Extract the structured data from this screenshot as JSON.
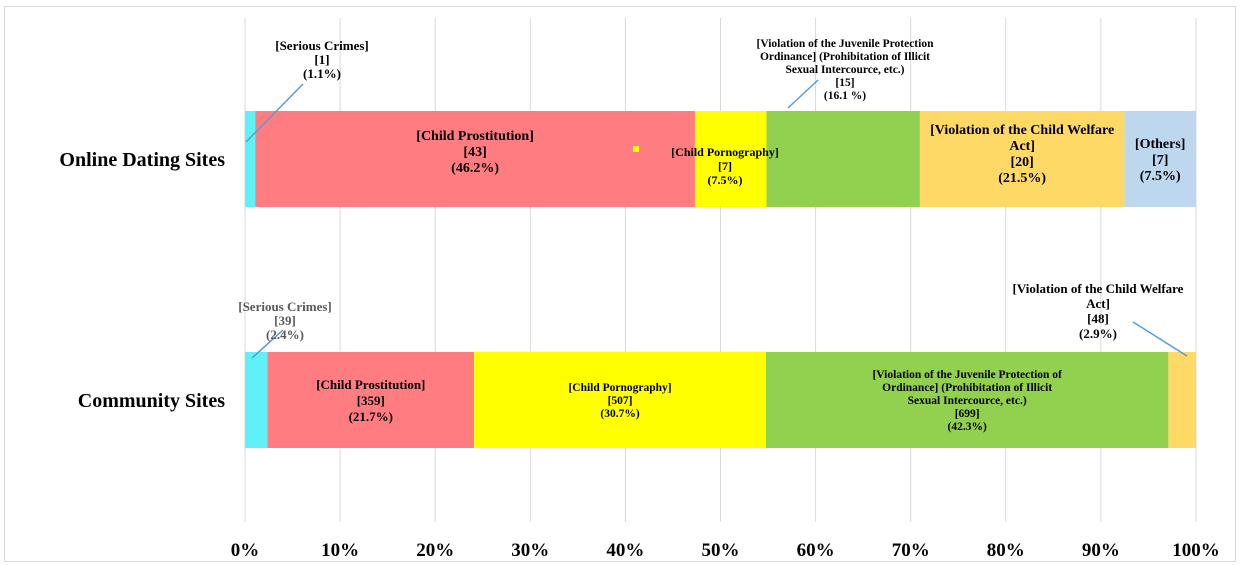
{
  "chart_data": {
    "type": "bar",
    "orientation": "horizontal",
    "stacked": "percent",
    "categories": [
      "Online Dating Sites",
      "Community Sites"
    ],
    "xlim": [
      0,
      100
    ],
    "x_ticks": [
      "0%",
      "10%",
      "20%",
      "30%",
      "40%",
      "50%",
      "60%",
      "70%",
      "80%",
      "90%",
      "100%"
    ],
    "grid": "vertical",
    "legend": "none",
    "series": [
      {
        "key": "serious",
        "color": "#5FF1F7",
        "values": [
          1,
          39
        ],
        "percents": [
          1.1,
          2.4
        ]
      },
      {
        "key": "prostitution",
        "color": "#FF7C80",
        "values": [
          43,
          359
        ],
        "percents": [
          46.2,
          21.7
        ]
      },
      {
        "key": "pornography",
        "color": "#FFFF00",
        "values": [
          7,
          507
        ],
        "percents": [
          7.5,
          30.7
        ]
      },
      {
        "key": "juvenile",
        "color": "#92D050",
        "values": [
          15,
          699
        ],
        "percents": [
          16.1,
          42.3
        ]
      },
      {
        "key": "welfare",
        "color": "#FFD966",
        "values": [
          20,
          48
        ],
        "percents": [
          21.5,
          2.9
        ]
      },
      {
        "key": "others",
        "color": "#BDD7EE",
        "values": [
          7,
          0
        ],
        "percents": [
          7.5,
          0
        ]
      }
    ],
    "annotations": [
      {
        "bar": 0,
        "seg": 0,
        "lines": [
          "[Serious Crimes]",
          "[1]",
          "(1.1%)"
        ],
        "callout": true
      },
      {
        "bar": 0,
        "seg": 1,
        "lines": [
          "[Child Prostitution]",
          "[43]",
          "(46.2%)"
        ]
      },
      {
        "bar": 0,
        "seg": 2,
        "lines": [
          "[Child Pornography]",
          "[7]",
          "(7.5%)"
        ]
      },
      {
        "bar": 0,
        "seg": 3,
        "lines": [
          "[Violation of the Juvenile Protection",
          "Ordinance] (Prohibitation of Illicit",
          "Sexual Intercource, etc.)",
          "[15]",
          "(16.1 %)"
        ],
        "callout": true
      },
      {
        "bar": 0,
        "seg": 4,
        "lines": [
          "[Violation of the Child Welfare",
          "Act]",
          "[20]",
          "(21.5%)"
        ]
      },
      {
        "bar": 0,
        "seg": 5,
        "lines": [
          "[Others]",
          "[7]",
          "(7.5%)"
        ]
      },
      {
        "bar": 1,
        "seg": 0,
        "lines": [
          "[Serious Crimes]",
          "[39]",
          "(2.4%)"
        ],
        "callout": true
      },
      {
        "bar": 1,
        "seg": 1,
        "lines": [
          "[Child Prostitution]",
          "[359]",
          "(21.7%)"
        ]
      },
      {
        "bar": 1,
        "seg": 2,
        "lines": [
          "[Child Pornography]",
          "[507]",
          "(30.7%)"
        ]
      },
      {
        "bar": 1,
        "seg": 3,
        "lines": [
          "[Violation of the Juvenile Protection of",
          "Ordinance] (Prohibitation of Illicit",
          "Sexual Intercource, etc.)",
          "[699]",
          "(42.3%)"
        ]
      },
      {
        "bar": 1,
        "seg": 4,
        "lines": [
          "[Violation of the Child Welfare",
          "Act]",
          "[48]",
          "(2.9%)"
        ],
        "callout": true
      }
    ]
  }
}
